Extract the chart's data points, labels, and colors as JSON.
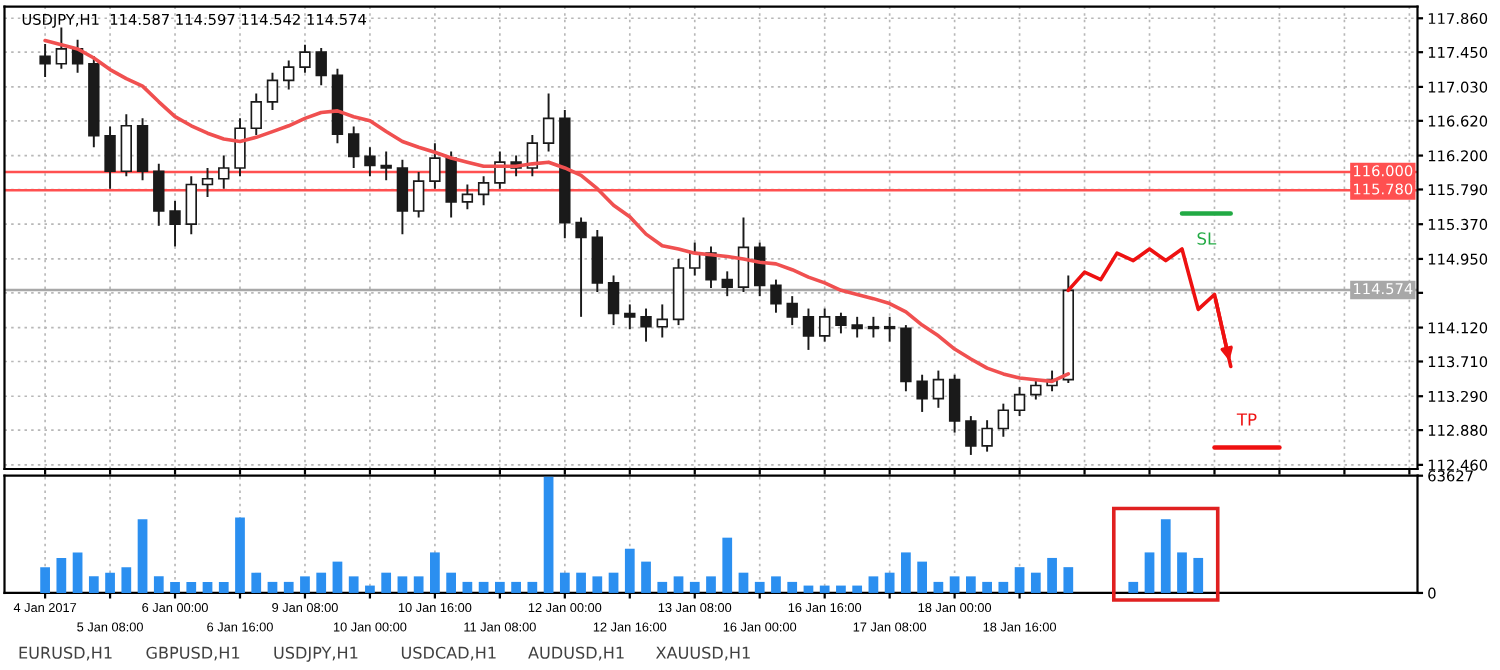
{
  "chart_data": [
    {
      "type": "candlestick",
      "title": "USDJPY,H1  114.587 114.597 114.542 114.574",
      "categories": [
        null,
        null,
        null,
        null,
        null,
        null,
        null,
        null,
        null,
        null,
        null,
        null,
        null,
        null,
        null,
        null,
        null,
        null,
        null,
        null,
        null,
        null,
        null,
        null,
        null,
        null,
        null,
        null,
        null,
        null,
        null,
        null,
        null,
        null,
        null,
        null,
        null,
        null,
        null,
        null,
        null,
        null,
        null,
        null,
        null,
        null,
        null,
        null,
        null,
        null,
        null,
        null,
        null,
        null,
        null,
        null,
        null,
        null,
        null,
        null,
        null,
        null,
        null,
        null,
        null,
        null,
        null,
        null,
        null,
        null,
        null,
        null,
        null,
        null,
        null,
        null,
        null,
        null,
        null,
        null,
        null,
        null,
        null,
        null,
        null
      ],
      "color": "#1a1a1a",
      "ohlc": [
        [
          117.4,
          117.55,
          117.15,
          117.31
        ],
        [
          117.31,
          117.75,
          117.25,
          117.49
        ],
        [
          117.49,
          117.6,
          117.2,
          117.31
        ],
        [
          117.31,
          117.4,
          116.3,
          116.44
        ],
        [
          116.44,
          116.55,
          115.8,
          116.01
        ],
        [
          116.01,
          116.7,
          115.95,
          116.56
        ],
        [
          116.56,
          116.65,
          115.9,
          116.01
        ],
        [
          116.01,
          116.1,
          115.35,
          115.53
        ],
        [
          115.53,
          115.65,
          115.1,
          115.37
        ],
        [
          115.37,
          115.95,
          115.25,
          115.85
        ],
        [
          115.85,
          116.05,
          115.7,
          115.92
        ],
        [
          115.92,
          116.2,
          115.8,
          116.05
        ],
        [
          116.05,
          116.65,
          115.95,
          116.53
        ],
        [
          116.53,
          116.95,
          116.45,
          116.85
        ],
        [
          116.85,
          117.2,
          116.75,
          117.11
        ],
        [
          117.11,
          117.35,
          117.0,
          117.27
        ],
        [
          117.27,
          117.54,
          117.2,
          117.45
        ],
        [
          117.45,
          117.5,
          117.05,
          117.17
        ],
        [
          117.17,
          117.25,
          116.35,
          116.46
        ],
        [
          116.46,
          116.55,
          116.05,
          116.19
        ],
        [
          116.19,
          116.3,
          115.95,
          116.08
        ],
        [
          116.08,
          116.25,
          115.9,
          116.05
        ],
        [
          116.05,
          116.15,
          115.25,
          115.53
        ],
        [
          115.53,
          116.0,
          115.45,
          115.89
        ],
        [
          115.89,
          116.35,
          115.8,
          116.17
        ],
        [
          116.17,
          116.25,
          115.45,
          115.64
        ],
        [
          115.64,
          115.85,
          115.55,
          115.73
        ],
        [
          115.73,
          115.95,
          115.6,
          115.87
        ],
        [
          115.87,
          116.25,
          115.8,
          116.12
        ],
        [
          116.12,
          116.2,
          115.95,
          116.05
        ],
        [
          116.05,
          116.45,
          115.95,
          116.35
        ],
        [
          116.35,
          116.95,
          116.25,
          116.65
        ],
        [
          116.65,
          116.75,
          115.2,
          115.39
        ],
        [
          115.39,
          115.45,
          114.25,
          115.21
        ],
        [
          115.21,
          115.3,
          114.55,
          114.66
        ],
        [
          114.66,
          114.75,
          114.15,
          114.29
        ],
        [
          114.29,
          114.4,
          114.1,
          114.25
        ],
        [
          114.25,
          114.35,
          113.95,
          114.13
        ],
        [
          114.13,
          114.4,
          114.0,
          114.22
        ],
        [
          114.22,
          114.95,
          114.15,
          114.84
        ],
        [
          114.84,
          115.15,
          114.75,
          115.02
        ],
        [
          115.02,
          115.1,
          114.6,
          114.7
        ],
        [
          114.7,
          114.8,
          114.5,
          114.61
        ],
        [
          114.61,
          115.45,
          114.55,
          115.09
        ],
        [
          115.09,
          115.15,
          114.5,
          114.63
        ],
        [
          114.63,
          114.7,
          114.3,
          114.41
        ],
        [
          114.41,
          114.5,
          114.15,
          114.25
        ],
        [
          114.25,
          114.35,
          113.85,
          114.02
        ],
        [
          114.02,
          114.35,
          113.95,
          114.25
        ],
        [
          114.25,
          114.3,
          114.05,
          114.15
        ],
        [
          114.15,
          114.25,
          114.0,
          114.11
        ],
        [
          114.11,
          114.25,
          114.0,
          114.13
        ],
        [
          114.13,
          114.25,
          113.95,
          114.11
        ],
        [
          114.11,
          114.15,
          113.35,
          113.47
        ],
        [
          113.47,
          113.55,
          113.1,
          113.26
        ],
        [
          113.26,
          113.6,
          113.15,
          113.49
        ],
        [
          113.49,
          113.55,
          112.85,
          112.99
        ],
        [
          112.99,
          113.05,
          112.58,
          112.69
        ],
        [
          112.69,
          113.0,
          112.62,
          112.9
        ],
        [
          112.9,
          113.2,
          112.8,
          113.12
        ],
        [
          113.12,
          113.4,
          113.05,
          113.31
        ],
        [
          113.31,
          113.5,
          113.25,
          113.42
        ],
        [
          113.42,
          113.6,
          113.35,
          113.49
        ],
        [
          113.49,
          114.75,
          113.45,
          114.57
        ],
        null,
        null,
        null,
        null,
        null,
        null,
        null,
        null,
        null,
        null,
        null,
        null,
        null,
        null,
        null,
        null,
        null,
        null,
        null,
        null,
        null
      ],
      "series": [
        {
          "type": "line",
          "color": "#f05050",
          "values": [
            117.59,
            117.54,
            117.49,
            117.38,
            117.24,
            117.13,
            117.04,
            116.85,
            116.67,
            116.56,
            116.47,
            116.4,
            116.37,
            116.42,
            116.49,
            116.56,
            116.65,
            116.72,
            116.74,
            116.67,
            116.62,
            116.49,
            116.37,
            116.3,
            116.24,
            116.17,
            116.12,
            116.07,
            116.07,
            116.07,
            116.1,
            116.12,
            116.05,
            115.96,
            115.8,
            115.6,
            115.46,
            115.25,
            115.11,
            115.07,
            115.02,
            115.0,
            114.98,
            114.95,
            114.91,
            114.89,
            114.82,
            114.73,
            114.66,
            114.57,
            114.52,
            114.47,
            114.41,
            114.31,
            114.15,
            114.02,
            113.86,
            113.74,
            113.63,
            113.56,
            113.51,
            113.49,
            113.47,
            113.56,
            null,
            null,
            null,
            null,
            null,
            null,
            null,
            null,
            null,
            null,
            null,
            null,
            null,
            null,
            null,
            null,
            null,
            null,
            null,
            null,
            null
          ]
        },
        {
          "type": "line",
          "color": "#ee1111",
          "values": [
            null,
            null,
            null,
            null,
            null,
            null,
            null,
            null,
            null,
            null,
            null,
            null,
            null,
            null,
            null,
            null,
            null,
            null,
            null,
            null,
            null,
            null,
            null,
            null,
            null,
            null,
            null,
            null,
            null,
            null,
            null,
            null,
            null,
            null,
            null,
            null,
            null,
            null,
            null,
            null,
            null,
            null,
            null,
            null,
            null,
            null,
            null,
            null,
            null,
            null,
            null,
            null,
            null,
            null,
            null,
            null,
            null,
            null,
            null,
            null,
            null,
            null,
            null,
            114.57,
            114.79,
            114.7,
            115.02,
            114.93,
            115.07,
            114.93,
            115.07,
            114.34,
            114.52,
            113.65,
            null,
            null,
            null,
            null,
            null,
            null,
            null,
            null,
            null,
            null,
            null
          ]
        },
        {
          "type": "line",
          "name": "SL",
          "color": "#22aa44",
          "values": [
            null,
            null,
            null,
            null,
            null,
            null,
            null,
            null,
            null,
            null,
            null,
            null,
            null,
            null,
            null,
            null,
            null,
            null,
            null,
            null,
            null,
            null,
            null,
            null,
            null,
            null,
            null,
            null,
            null,
            null,
            null,
            null,
            null,
            null,
            null,
            null,
            null,
            null,
            null,
            null,
            null,
            null,
            null,
            null,
            null,
            null,
            null,
            null,
            null,
            null,
            null,
            null,
            null,
            null,
            null,
            null,
            null,
            null,
            null,
            null,
            null,
            null,
            null,
            null,
            null,
            null,
            null,
            null,
            null,
            null,
            115.5,
            115.5,
            115.5,
            115.5,
            null,
            null,
            null,
            null,
            null,
            null,
            null,
            null,
            null,
            null,
            null
          ]
        },
        {
          "type": "line",
          "name": "TP",
          "color": "#ee1111",
          "values": [
            null,
            null,
            null,
            null,
            null,
            null,
            null,
            null,
            null,
            null,
            null,
            null,
            null,
            null,
            null,
            null,
            null,
            null,
            null,
            null,
            null,
            null,
            null,
            null,
            null,
            null,
            null,
            null,
            null,
            null,
            null,
            null,
            null,
            null,
            null,
            null,
            null,
            null,
            null,
            null,
            null,
            null,
            null,
            null,
            null,
            null,
            null,
            null,
            null,
            null,
            null,
            null,
            null,
            null,
            null,
            null,
            null,
            null,
            null,
            null,
            null,
            null,
            null,
            null,
            null,
            null,
            null,
            null,
            null,
            null,
            null,
            null,
            112.67,
            112.67,
            112.67,
            112.67,
            112.67,
            null,
            null,
            null,
            null,
            null,
            null,
            null,
            null
          ]
        }
      ],
      "ylim": [
        112.41,
        118.0
      ],
      "yticks": [
        {
          "value": 117.86,
          "label": "117.860"
        },
        {
          "value": 117.45,
          "label": "117.450"
        },
        {
          "value": 117.03,
          "label": "117.030"
        },
        {
          "value": 116.62,
          "label": "116.620"
        },
        {
          "value": 116.2,
          "label": "116.200"
        },
        {
          "value": 115.79,
          "label": "115.790"
        },
        {
          "value": 115.37,
          "label": "115.370"
        },
        {
          "value": 114.95,
          "label": "114.950"
        },
        {
          "value": 114.54,
          "label": null
        },
        {
          "value": 114.12,
          "label": "114.120"
        },
        {
          "value": 113.71,
          "label": "113.710"
        },
        {
          "value": 113.29,
          "label": "113.290"
        },
        {
          "value": 112.88,
          "label": "112.880"
        },
        {
          "value": 112.46,
          "label": "112.460"
        }
      ],
      "ref_lines": [
        {
          "axis": "y",
          "value": 116.0,
          "label": "116.000",
          "color": "#ff5050"
        },
        {
          "axis": "y",
          "value": 115.78,
          "label": "115.780",
          "color": "#ff5050"
        },
        {
          "axis": "y",
          "value": 114.574,
          "label": "114.574",
          "color": "#a8a8a8"
        }
      ],
      "grid": true
    },
    {
      "type": "bar",
      "color": "#2b8ff0",
      "categories": [
        "4 Jan 2017",
        null,
        null,
        null,
        "5 Jan 08:00",
        null,
        null,
        null,
        "6 Jan 00:00",
        null,
        null,
        null,
        "6 Jan 16:00",
        null,
        null,
        null,
        "9 Jan 08:00",
        null,
        null,
        null,
        "10 Jan 00:00",
        null,
        null,
        null,
        "10 Jan 16:00",
        null,
        null,
        null,
        "11 Jan 08:00",
        null,
        null,
        null,
        "12 Jan 00:00",
        null,
        null,
        null,
        "12 Jan 16:00",
        null,
        null,
        null,
        "13 Jan 08:00",
        null,
        null,
        null,
        "16 Jan 00:00",
        null,
        null,
        null,
        "16 Jan 16:00",
        null,
        null,
        null,
        "17 Jan 08:00",
        null,
        null,
        null,
        "18 Jan 00:00",
        null,
        null,
        null,
        "18 Jan 16:00",
        null,
        null,
        null,
        null,
        null,
        null,
        null,
        null,
        null,
        null,
        null,
        null,
        null,
        null,
        null,
        null,
        null,
        null,
        null,
        null,
        null,
        null,
        null,
        null
      ],
      "values": [
        14000,
        19000,
        22000,
        9000,
        11000,
        14000,
        40000,
        9000,
        6000,
        6000,
        6000,
        6000,
        41000,
        11000,
        6000,
        6000,
        9000,
        11000,
        17000,
        9000,
        4000,
        11000,
        9000,
        9000,
        22000,
        11000,
        6000,
        6000,
        6000,
        6000,
        6000,
        63000,
        11000,
        11000,
        9000,
        11000,
        24000,
        17000,
        6000,
        9000,
        6000,
        9000,
        30000,
        11000,
        6000,
        9000,
        6000,
        4000,
        4000,
        4000,
        4000,
        9000,
        11000,
        22000,
        17000,
        6000,
        9000,
        9000,
        6000,
        6000,
        14000,
        11000,
        19000,
        14000,
        null,
        null,
        null,
        6000,
        22000,
        40000,
        22000,
        19000,
        null,
        null,
        null,
        null,
        null,
        null,
        null,
        null,
        null,
        null,
        null,
        null,
        null
      ],
      "ylim": [
        0,
        63627
      ],
      "yticks": [
        0,
        63627
      ],
      "grid": "x",
      "annotations": [
        "EURUSD,H1",
        "GBPUSD,H1",
        "USDJPY,H1",
        "USDCAD,H1",
        "AUDUSD,H1",
        "XAUUSD,H1"
      ]
    }
  ]
}
